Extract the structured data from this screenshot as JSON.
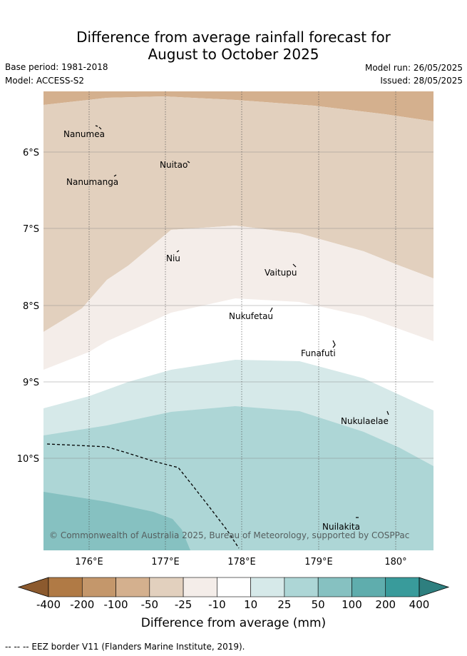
{
  "title_line1": "Difference from average rainfall forecast for",
  "title_line2": "August to October 2025",
  "base_period": "Base period: 1981-2018",
  "model": "Model: ACCESS-S2",
  "model_run": "Model run: 26/05/2025",
  "issued": "Issued: 28/05/2025",
  "copyright": "© Commonwealth of Australia 2025, Bureau of Meteorology, supported by COSPPac",
  "footnote": "--  --  -- EEZ border V11 (Flanders Marine Institute, 2019).",
  "lat_labels": [
    "6°S",
    "7°S",
    "8°S",
    "9°S",
    "10°S"
  ],
  "lon_labels": [
    "176°E",
    "177°E",
    "178°E",
    "179°E",
    "180°"
  ],
  "islands": [
    "Nanumea",
    "Nuitao",
    "Nanumanga",
    "Niu",
    "Vaitupu",
    "Nukufetau",
    "Funafuti",
    "Nukulaelae",
    "Nuilakita"
  ],
  "colorbar": {
    "ticks": [
      "-400",
      "-200",
      "-100",
      "-50",
      "-25",
      "-10",
      "10",
      "25",
      "50",
      "100",
      "200",
      "400"
    ],
    "title": "Difference from average (mm)",
    "colors": [
      "#8c5a2e",
      "#b07a45",
      "#c4976b",
      "#d4b08e",
      "#e2d0be",
      "#f4ede9",
      "#ffffff",
      "#d6e9e9",
      "#add6d6",
      "#86c1c1",
      "#5fadad",
      "#399b9b",
      "#2e7f7f"
    ]
  }
}
